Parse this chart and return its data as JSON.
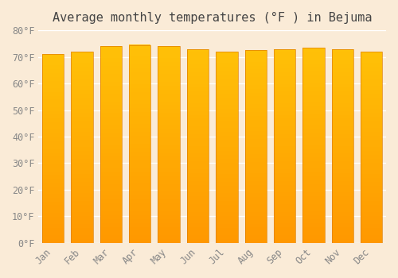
{
  "title": "Average monthly temperatures (°F ) in Bejuma",
  "months": [
    "Jan",
    "Feb",
    "Mar",
    "Apr",
    "May",
    "Jun",
    "Jul",
    "Aug",
    "Sep",
    "Oct",
    "Nov",
    "Dec"
  ],
  "values": [
    71,
    72,
    74,
    74.5,
    74,
    73,
    72,
    72.5,
    73,
    73.5,
    73,
    72
  ],
  "ylim": [
    0,
    80
  ],
  "yticks": [
    0,
    10,
    20,
    30,
    40,
    50,
    60,
    70,
    80
  ],
  "ytick_labels": [
    "0°F",
    "10°F",
    "20°F",
    "30°F",
    "40°F",
    "50°F",
    "60°F",
    "70°F",
    "80°F"
  ],
  "bar_color_top": "#FFC107",
  "bar_color_bottom": "#FF9800",
  "background_color": "#FAEBD7",
  "grid_color": "#FFFFFF",
  "title_fontsize": 11,
  "tick_fontsize": 8.5
}
